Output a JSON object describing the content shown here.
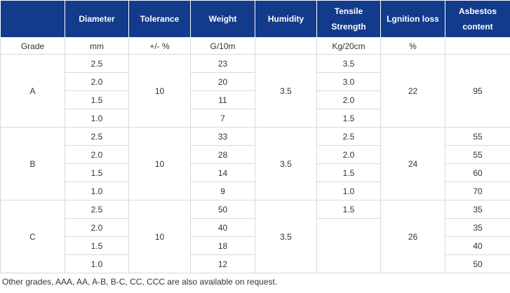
{
  "headers": [
    "",
    "Diameter",
    "Tolerance",
    "Weight",
    "Humidity",
    "Tensile Strength",
    "Lgnition loss",
    "Asbestos content"
  ],
  "units": [
    "Grade",
    "mm",
    "+/- %",
    "G/10m",
    "",
    "Kg/20cm",
    "%",
    ""
  ],
  "grades": [
    {
      "grade": "A",
      "tolerance": "10",
      "humidity": "3.5",
      "ignition_loss": "22",
      "rows": [
        {
          "diameter": "2.5",
          "weight": "23",
          "tensile": "3.5"
        },
        {
          "diameter": "2.0",
          "weight": "20",
          "tensile": "3.0"
        },
        {
          "diameter": "1.5",
          "weight": "11",
          "tensile": "2.0"
        },
        {
          "diameter": "1.0",
          "weight": "7",
          "tensile": "1.5"
        }
      ],
      "asbestos_merged": "95"
    },
    {
      "grade": "B",
      "tolerance": "10",
      "humidity": "3.5",
      "ignition_loss": "24",
      "rows": [
        {
          "diameter": "2.5",
          "weight": "33",
          "tensile": "2.5",
          "asbestos": "55"
        },
        {
          "diameter": "2.0",
          "weight": "28",
          "tensile": "2.0",
          "asbestos": "55"
        },
        {
          "diameter": "1.5",
          "weight": "14",
          "tensile": "1.5",
          "asbestos": "60"
        },
        {
          "diameter": "1.0",
          "weight": "9",
          "tensile": "1.0",
          "asbestos": "70"
        }
      ]
    },
    {
      "grade": "C",
      "tolerance": "10",
      "humidity": "3.5",
      "ignition_loss": "26",
      "tensile_merged": "1.5",
      "rows": [
        {
          "diameter": "2.5",
          "weight": "50",
          "asbestos": "35"
        },
        {
          "diameter": "2.0",
          "weight": "40",
          "asbestos": "35"
        },
        {
          "diameter": "1.5",
          "weight": "18",
          "asbestos": "40"
        },
        {
          "diameter": "1.0",
          "weight": "12",
          "asbestos": "50"
        }
      ]
    }
  ],
  "footnote": "Other grades, AAA, AA, A-B, B-C, CC, CCC are also available on request.",
  "colors": {
    "header_background": "#123b8c",
    "header_text": "#ffffff",
    "body_text": "#333333",
    "grid_line": "#d9d9d9"
  }
}
